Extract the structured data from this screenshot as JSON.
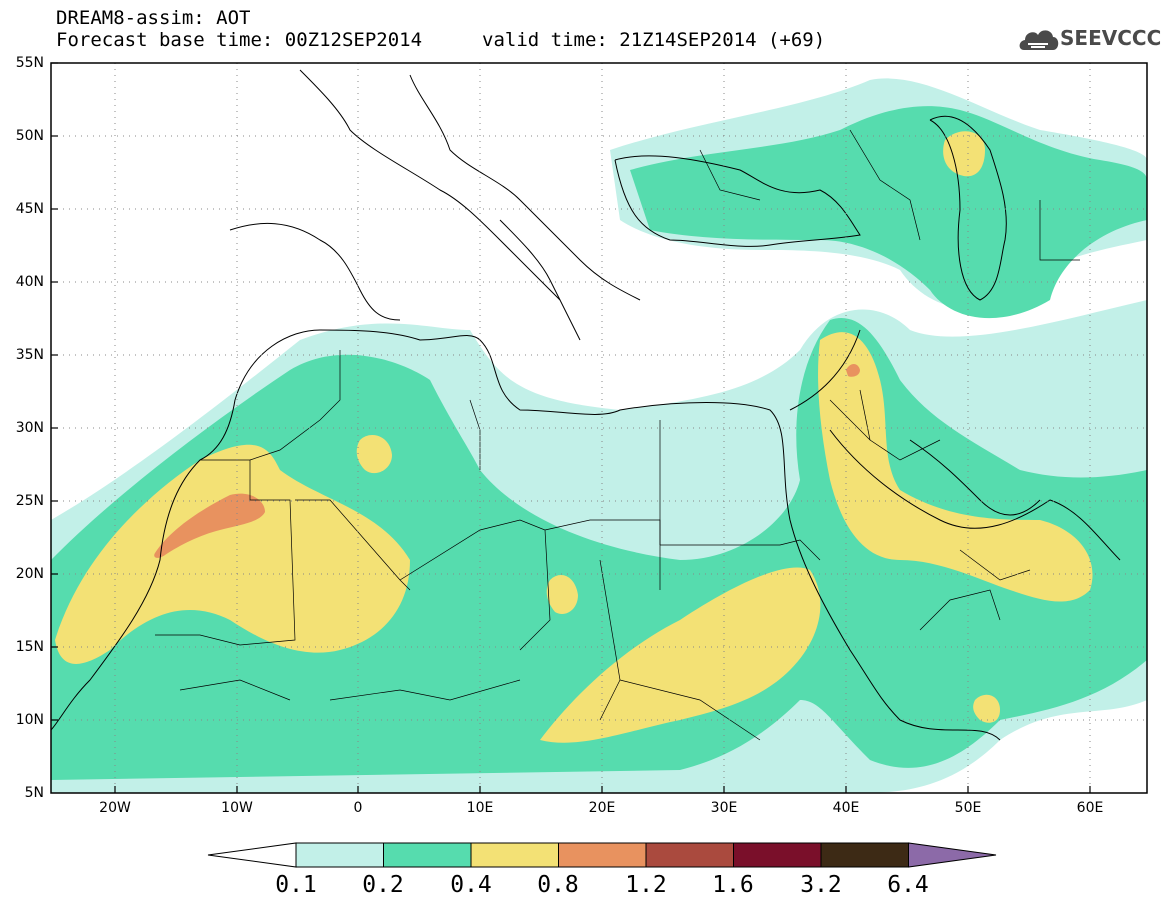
{
  "header": {
    "title_line1": "DREAM8-assim: AOT",
    "title_line2": "Forecast base time: 00Z12SEP2014",
    "title_line3": "valid time: 21Z14SEP2014 (+69)",
    "logo_text": "SEEVCCC",
    "logo_icon": "cloud-icon",
    "logo_color": "#4a4a4a"
  },
  "map": {
    "region": "North Africa, Europe and Middle East",
    "lon_range": [
      -25,
      65
    ],
    "lat_range": [
      5,
      55
    ],
    "lat_labels": [
      "55N",
      "50N",
      "45N",
      "40N",
      "35N",
      "30N",
      "25N",
      "20N",
      "15N",
      "10N",
      "5N"
    ],
    "lon_labels": [
      "20W",
      "10W",
      "0",
      "10E",
      "20E",
      "30E",
      "40E",
      "50E",
      "60E"
    ],
    "gridlines": "dotted"
  },
  "legend": {
    "levels": [
      "0.1",
      "0.2",
      "0.4",
      "0.8",
      "1.2",
      "1.6",
      "3.2",
      "6.4"
    ],
    "colors": [
      "#ffffff",
      "#c2f0e8",
      "#56dcae",
      "#f3e175",
      "#e8925f",
      "#aa4a3e",
      "#7a0f2a",
      "#3d2a15",
      "#8c6aa8"
    ]
  }
}
